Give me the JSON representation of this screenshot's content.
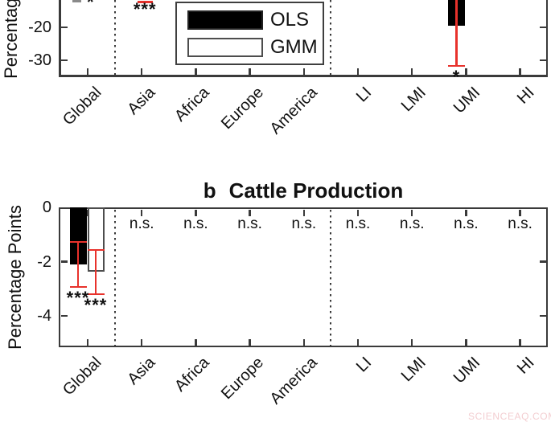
{
  "colors": {
    "bar_ols": "#000000",
    "bar_gmm_fill": "#ffffff",
    "bar_gmm_border": "#4d4d4d",
    "error_bar": "#e8322c",
    "axis": "#3a3a3a",
    "text": "#111111",
    "watermark": "#f3ced1"
  },
  "legend": {
    "items": [
      {
        "label": "OLS",
        "fill": "#000000"
      },
      {
        "label": "GMM",
        "fill": "#ffffff"
      }
    ]
  },
  "watermark": {
    "text": "SCIENCEAQ.COM"
  },
  "chart_data": [
    {
      "id": "panel_a",
      "type": "bar",
      "title": "",
      "ylabel": "Percentage Points",
      "categories": [
        "Global",
        "Asia",
        "Africa",
        "Europe",
        "America",
        "LI",
        "LMI",
        "UMI",
        "HI"
      ],
      "yticks": [
        -20,
        -30
      ],
      "visible_ylim": [
        -11.7,
        -35
      ],
      "separators_after": [
        "Global",
        "America"
      ],
      "legend_entries": [
        "OLS",
        "GMM"
      ],
      "legend_position": "upper-center-inside",
      "series": [
        {
          "name": "OLS",
          "points": [
            {
              "category": "UMI",
              "value": -19.5,
              "ci_high": null,
              "ci_low": -31.7,
              "sig": "*"
            }
          ]
        },
        {
          "name": "GMM",
          "points": []
        }
      ],
      "annotations": [
        {
          "category": "Asia",
          "type": "significance",
          "text": "***",
          "errorbar_cap_value": -12.2
        },
        {
          "category": "Global",
          "type": "cropped-marks"
        }
      ]
    },
    {
      "id": "panel_b",
      "type": "bar",
      "title_prefix": "b",
      "title": "Cattle Production",
      "ylabel": "Percentage Points",
      "categories": [
        "Global",
        "Asia",
        "Africa",
        "Europe",
        "America",
        "LI",
        "LMI",
        "UMI",
        "HI"
      ],
      "yticks": [
        0,
        -2,
        -4
      ],
      "ylim": [
        0,
        -5.15
      ],
      "separators_after": [
        "Global",
        "America"
      ],
      "ns_label": "n.s.",
      "ns_categories": [
        "Asia",
        "Africa",
        "Europe",
        "America",
        "LI",
        "LMI",
        "UMI",
        "HI"
      ],
      "series": [
        {
          "name": "OLS",
          "points": [
            {
              "category": "Global",
              "value": -2.1,
              "ci_high": -1.27,
              "ci_low": -2.93,
              "sig": "***"
            }
          ]
        },
        {
          "name": "GMM",
          "points": [
            {
              "category": "Global",
              "value": -2.37,
              "ci_high": -1.57,
              "ci_low": -3.2,
              "sig": "***"
            }
          ]
        }
      ]
    }
  ]
}
